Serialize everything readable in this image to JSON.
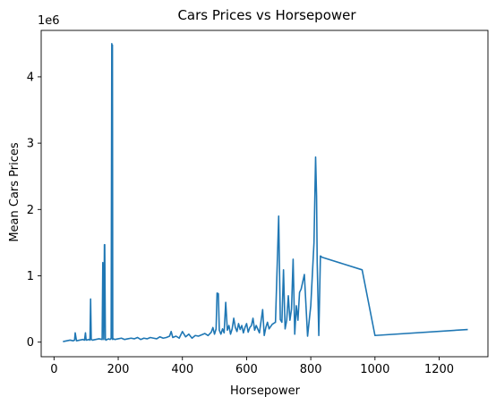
{
  "chart_data": {
    "type": "line",
    "title": "Cars Prices vs Horsepower",
    "xlabel": "Horsepower",
    "ylabel": "Mean Cars Prices",
    "y_offset_label": "1e6",
    "xlim": [
      -40,
      1352
    ],
    "ylim": [
      -0.22,
      4.7
    ],
    "xticks": [
      0,
      200,
      400,
      600,
      800,
      1000,
      1200
    ],
    "yticks": [
      0,
      1,
      2,
      3,
      4
    ],
    "y_multiplier": 1000000,
    "grid": false,
    "legend": "none",
    "series": [
      {
        "color": "#1f77b4",
        "x": [
          30,
          40,
          50,
          60,
          64,
          66,
          70,
          80,
          90,
          95,
          98,
          100,
          110,
          112,
          114,
          116,
          120,
          130,
          140,
          150,
          152,
          155,
          157,
          158,
          160,
          162,
          165,
          170,
          175,
          178,
          180,
          181,
          182,
          183,
          185,
          190,
          200,
          210,
          220,
          230,
          240,
          250,
          260,
          270,
          280,
          290,
          300,
          310,
          320,
          330,
          340,
          350,
          360,
          365,
          370,
          380,
          390,
          400,
          410,
          420,
          430,
          440,
          450,
          460,
          470,
          480,
          490,
          495,
          500,
          505,
          508,
          512,
          515,
          520,
          525,
          530,
          535,
          540,
          545,
          550,
          555,
          560,
          565,
          570,
          575,
          580,
          585,
          590,
          595,
          600,
          605,
          610,
          615,
          620,
          625,
          630,
          640,
          650,
          655,
          660,
          665,
          670,
          680,
          690,
          700,
          705,
          710,
          715,
          720,
          725,
          730,
          735,
          740,
          745,
          750,
          755,
          760,
          765,
          770,
          780,
          790,
          800,
          810,
          815,
          818,
          820,
          825,
          830,
          835,
          960,
          1000,
          1287
        ],
        "y": [
          0.01,
          0.02,
          0.03,
          0.02,
          0.03,
          0.14,
          0.02,
          0.03,
          0.04,
          0.03,
          0.14,
          0.03,
          0.04,
          0.03,
          0.65,
          0.04,
          0.03,
          0.04,
          0.05,
          0.04,
          1.2,
          0.04,
          1.47,
          1.47,
          0.04,
          0.03,
          0.04,
          0.05,
          0.04,
          0.06,
          4.5,
          0.05,
          4.48,
          0.04,
          0.05,
          0.04,
          0.05,
          0.06,
          0.04,
          0.05,
          0.06,
          0.05,
          0.07,
          0.04,
          0.06,
          0.05,
          0.07,
          0.06,
          0.05,
          0.08,
          0.06,
          0.07,
          0.09,
          0.16,
          0.07,
          0.09,
          0.06,
          0.16,
          0.08,
          0.12,
          0.06,
          0.1,
          0.09,
          0.11,
          0.13,
          0.1,
          0.15,
          0.22,
          0.12,
          0.2,
          0.74,
          0.73,
          0.18,
          0.12,
          0.2,
          0.14,
          0.6,
          0.18,
          0.25,
          0.12,
          0.2,
          0.36,
          0.22,
          0.16,
          0.28,
          0.19,
          0.25,
          0.14,
          0.22,
          0.28,
          0.15,
          0.22,
          0.25,
          0.36,
          0.18,
          0.25,
          0.14,
          0.49,
          0.1,
          0.22,
          0.3,
          0.2,
          0.27,
          0.3,
          1.9,
          0.34,
          0.3,
          1.09,
          0.2,
          0.33,
          0.7,
          0.33,
          0.5,
          1.25,
          0.12,
          0.55,
          0.33,
          0.75,
          0.8,
          1.02,
          0.09,
          0.55,
          1.5,
          2.79,
          2.2,
          1.2,
          0.1,
          1.3,
          1.28,
          1.09,
          0.1,
          0.19
        ]
      }
    ]
  }
}
